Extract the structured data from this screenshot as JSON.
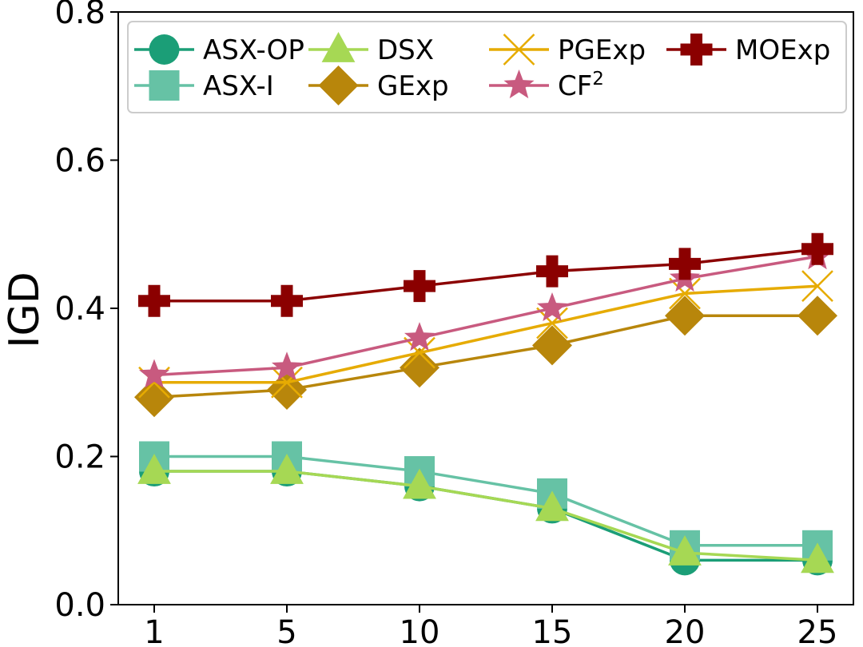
{
  "chart_data": {
    "type": "line",
    "title": "",
    "xlabel": "",
    "ylabel": "IGD",
    "categories": [
      "1",
      "5",
      "10",
      "15",
      "20",
      "25"
    ],
    "ylim": [
      0.0,
      0.8
    ],
    "yticks": [
      "0.0",
      "0.2",
      "0.4",
      "0.6",
      "0.8"
    ],
    "grid": false,
    "legend_position": "top",
    "series": [
      {
        "name": "ASX-OP",
        "sup": "",
        "color": "#1b9e77",
        "marker": "circle",
        "values": [
          0.18,
          0.18,
          0.16,
          0.13,
          0.06,
          0.06
        ]
      },
      {
        "name": "ASX-I",
        "sup": "",
        "color": "#66c2a5",
        "marker": "square",
        "values": [
          0.2,
          0.2,
          0.18,
          0.15,
          0.08,
          0.08
        ]
      },
      {
        "name": "DSX",
        "sup": "",
        "color": "#a6d854",
        "marker": "triangle",
        "values": [
          0.18,
          0.18,
          0.16,
          0.13,
          0.07,
          0.06
        ]
      },
      {
        "name": "GExp",
        "sup": "",
        "color": "#b8860b",
        "marker": "diamond",
        "values": [
          0.28,
          0.29,
          0.32,
          0.35,
          0.39,
          0.39
        ]
      },
      {
        "name": "PGExp",
        "sup": "",
        "color": "#e6ab02",
        "marker": "x",
        "values": [
          0.3,
          0.3,
          0.34,
          0.38,
          0.42,
          0.43
        ]
      },
      {
        "name": "CF",
        "sup": "2",
        "color": "#c85a7f",
        "marker": "star",
        "values": [
          0.31,
          0.32,
          0.36,
          0.4,
          0.44,
          0.47
        ]
      },
      {
        "name": "MOExp",
        "sup": "",
        "color": "#8b0000",
        "marker": "plus",
        "values": [
          0.41,
          0.41,
          0.43,
          0.45,
          0.46,
          0.48
        ]
      }
    ]
  }
}
